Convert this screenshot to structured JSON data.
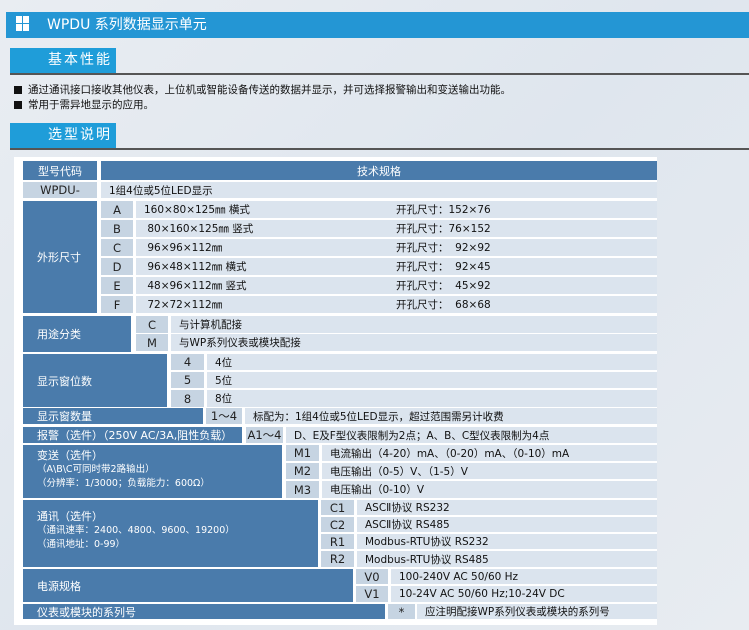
{
  "title": "WPDU 系列数据显示单元",
  "colors": {
    "title_bar": "#2496d4",
    "section_tab": "#1f9dd9",
    "dark_cell": "#4a7bab",
    "code_cell": "#c6d4e2",
    "light_cell": "#dbe4ee"
  },
  "section1": {
    "label": "基本性能",
    "bullets": [
      "通过通讯接口接收其他仪表，上位机或智能设备传送的数据并显示，并可选择报警输出和变送输出功能。",
      "常用于需异地显示的应用。"
    ]
  },
  "section2": {
    "label": "选型说明"
  },
  "table": {
    "header": {
      "code": "型号代码",
      "spec": "技术规格"
    },
    "model": {
      "code": "WPDU-",
      "desc": "1组4位或5位LED显示"
    },
    "size": {
      "label": "外形尺寸",
      "rows": [
        {
          "code": "A",
          "dim": "160×80×125㎜ 横式",
          "cut": "开孔尺寸：152×76"
        },
        {
          "code": "B",
          "dim": " 80×160×125㎜ 竖式",
          "cut": "开孔尺寸：76×152"
        },
        {
          "code": "C",
          "dim": " 96×96×112㎜",
          "cut": "开孔尺寸：  92×92"
        },
        {
          "code": "D",
          "dim": " 96×48×112㎜ 横式",
          "cut": "开孔尺寸：  92×45"
        },
        {
          "code": "E",
          "dim": " 48×96×112㎜ 竖式",
          "cut": "开孔尺寸：  45×92"
        },
        {
          "code": "F",
          "dim": " 72×72×112㎜",
          "cut": "开孔尺寸：  68×68"
        }
      ]
    },
    "usage": {
      "label": "用途分类",
      "rows": [
        {
          "code": "C",
          "desc": "与计算机配接"
        },
        {
          "code": "M",
          "desc": "与WP系列仪表或模块配接"
        }
      ]
    },
    "digits": {
      "label": "显示窗位数",
      "rows": [
        {
          "code": "4",
          "desc": "4位"
        },
        {
          "code": "5",
          "desc": "5位"
        },
        {
          "code": "8",
          "desc": "8位"
        }
      ]
    },
    "count": {
      "label": "显示窗数量",
      "code": "1～4",
      "desc": "标配为：1组4位或5位LED显示，超过范围需另计收费"
    },
    "alarm": {
      "label": "报警（选件）（250V AC/3A,阻性负载）",
      "code": "A1～4",
      "desc": "D、E及F型仪表限制为2点；A、B、C型仪表限制为4点"
    },
    "transmit": {
      "label": "变送（选件）",
      "note1": "（A\\B\\C可同时带2路输出）",
      "note2": "（分辨率：1/3000；负载能力：600Ω）",
      "rows": [
        {
          "code": "M1",
          "desc": "电流输出（4-20）mA、（0-20）mA、（0-10）mA"
        },
        {
          "code": "M2",
          "desc": "电压输出（0-5）V、（1-5）V"
        },
        {
          "code": "M3",
          "desc": "电压输出（0-10）V"
        }
      ]
    },
    "comm": {
      "label": "通讯（选件）",
      "note1": "（通讯速率：2400、4800、9600、19200）",
      "note2": "（通讯地址：0-99）",
      "rows": [
        {
          "code": "C1",
          "desc": "ASCⅡ协议 RS232"
        },
        {
          "code": "C2",
          "desc": "ASCⅡ协议 RS485"
        },
        {
          "code": "R1",
          "desc": "Modbus-RTU协议 RS232"
        },
        {
          "code": "R2",
          "desc": "Modbus-RTU协议 RS485"
        }
      ]
    },
    "power": {
      "label": "电源规格",
      "rows": [
        {
          "code": "V0",
          "desc": "100-240V AC 50/60 Hz"
        },
        {
          "code": "V1",
          "desc": "10-24V AC 50/60 Hz;10-24V DC"
        }
      ]
    },
    "series": {
      "label": "仪表或模块的系列号",
      "code": "*",
      "desc": "应注明配接WP系列仪表或模块的系列号"
    }
  }
}
